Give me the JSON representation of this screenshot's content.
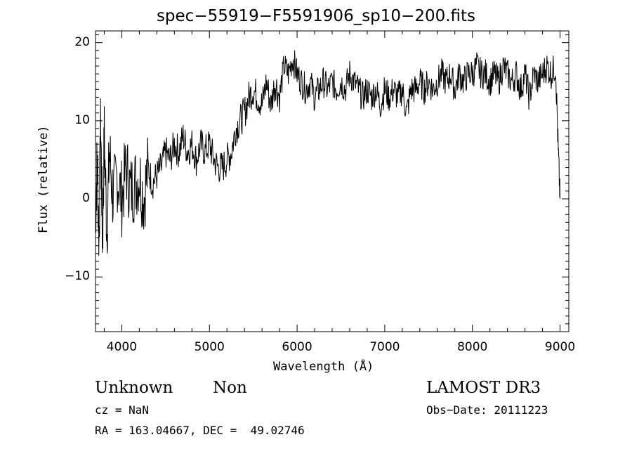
{
  "chart_data": {
    "type": "line",
    "title": "spec−55919−F5591906_sp10−200.fits",
    "xlabel": "Wavelength (Å)",
    "ylabel": "Flux (relative)",
    "xlim": [
      3700,
      9100
    ],
    "ylim": [
      -17,
      21.5
    ],
    "x_ticks": [
      4000,
      5000,
      6000,
      7000,
      8000,
      9000
    ],
    "x_tick_labels": [
      "4000",
      "5000",
      "6000",
      "7000",
      "8000",
      "9000"
    ],
    "y_ticks": [
      -10,
      0,
      10,
      20
    ],
    "y_tick_labels": [
      "−10",
      "0",
      "10",
      "20"
    ],
    "grid": false,
    "legend": "none",
    "series": [
      {
        "x": [
          3700,
          3720,
          3740,
          3760,
          3780,
          3800,
          3830,
          3860,
          3900,
          3950,
          4000,
          4050,
          4100,
          4150,
          4200,
          4250,
          4300,
          4350,
          4400,
          4450,
          4500,
          4550,
          4600,
          4650,
          4700,
          4750,
          4800,
          4850,
          4900,
          4950,
          5000,
          5050,
          5100,
          5150,
          5200,
          5250,
          5300,
          5350,
          5400,
          5450,
          5500,
          5550,
          5600,
          5650,
          5700,
          5750,
          5800,
          5850,
          5900,
          5950,
          6000,
          6050,
          6100,
          6150,
          6200,
          6250,
          6300,
          6350,
          6400,
          6450,
          6500,
          6550,
          6600,
          6650,
          6700,
          6750,
          6800,
          6850,
          6900,
          6950,
          7000,
          7050,
          7100,
          7150,
          7200,
          7250,
          7300,
          7350,
          7400,
          7450,
          7500,
          7550,
          7600,
          7650,
          7700,
          7750,
          7800,
          7850,
          7900,
          7950,
          8000,
          8050,
          8100,
          8150,
          8200,
          8250,
          8300,
          8350,
          8400,
          8450,
          8500,
          8550,
          8600,
          8650,
          8700,
          8750,
          8800,
          8850,
          8900,
          8950,
          8980,
          9000
        ],
        "y": [
          -2,
          5,
          -5,
          10,
          -6,
          8,
          -4,
          6,
          0,
          3,
          0,
          4,
          1,
          2,
          3,
          0,
          4,
          2,
          3,
          4,
          6,
          5,
          7,
          6,
          8,
          6,
          7,
          5,
          7,
          6,
          7,
          5,
          4,
          4,
          5,
          6,
          9,
          10,
          11,
          13,
          14,
          13,
          12,
          15,
          12,
          15,
          13,
          17,
          16,
          18,
          16,
          15,
          14,
          15,
          13,
          14,
          15,
          14,
          15,
          14,
          15,
          14,
          16,
          15,
          14,
          13,
          14,
          13,
          14,
          12,
          14,
          13,
          14,
          13,
          14,
          11,
          14,
          14,
          15,
          14,
          15,
          14,
          15,
          16,
          15,
          16,
          14,
          16,
          15,
          16,
          16,
          17,
          16,
          16,
          15,
          16,
          15,
          17,
          16,
          15,
          16,
          14,
          16,
          13,
          16,
          15,
          16,
          17,
          16,
          17,
          6,
          0
        ]
      }
    ]
  },
  "annotations": {
    "class": "Unknown",
    "subclass": "Non",
    "survey": "LAMOST DR3",
    "cz": "cz = NaN",
    "obs_date": "Obs−Date: 20111223",
    "coords": "RA = 163.04667, DEC =  49.02746"
  }
}
